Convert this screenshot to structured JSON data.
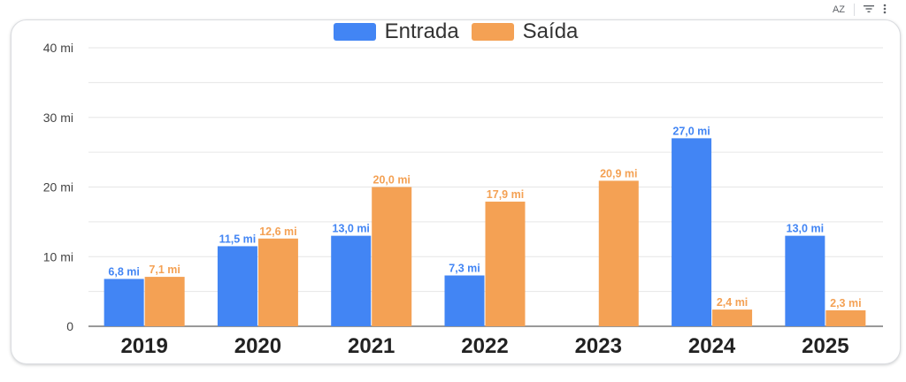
{
  "toolbar": {
    "sort_icon_label": "AZ",
    "icons": [
      "sort-az-icon",
      "filter-icon",
      "more-vert-icon"
    ]
  },
  "colors": {
    "entrada": "#4285f4",
    "saida": "#f4a154",
    "grid": "#e6e6e6"
  },
  "chart_data": {
    "type": "bar",
    "title": "",
    "xlabel": "",
    "ylabel": "",
    "categories": [
      "2019",
      "2020",
      "2021",
      "2022",
      "2023",
      "2024",
      "2025"
    ],
    "series": [
      {
        "name": "Entrada",
        "values": [
          6.8,
          11.5,
          13.0,
          7.3,
          null,
          27.0,
          13.0
        ],
        "labels": [
          "6,8 mi",
          "11,5 mi",
          "13,0 mi",
          "7,3 mi",
          "",
          "27,0 mi",
          "13,0 mi"
        ]
      },
      {
        "name": "Saída",
        "values": [
          7.1,
          12.6,
          20.0,
          17.9,
          20.9,
          2.4,
          2.3
        ],
        "labels": [
          "7,1 mi",
          "12,6 mi",
          "20,0 mi",
          "17,9 mi",
          "20,9 mi",
          "2,4 mi",
          "2,3 mi"
        ]
      }
    ],
    "ylim": [
      0,
      40
    ],
    "yticks": [
      0,
      10,
      20,
      30,
      40
    ],
    "ytick_labels": [
      "0",
      "10 mi",
      "20 mi",
      "30 mi",
      "40 mi"
    ],
    "grid": true,
    "legend": "top-center"
  }
}
